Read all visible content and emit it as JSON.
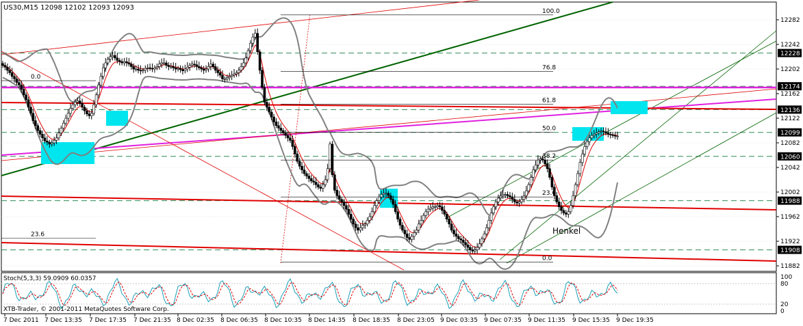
{
  "header": {
    "symbol_info": "US30,M15  12098 12102 12093 12093"
  },
  "stoch": {
    "label": "Stoch(5,3,3) 59.0909 60.0357",
    "levels": [
      "80",
      "20"
    ],
    "range_labels": [
      "100",
      "0"
    ]
  },
  "watermark": "XTB-Trader, © 2001-2011 MetaQuotes Software Corp.",
  "annotation": "Henkel",
  "colors": {
    "background": "#ffffff",
    "grid": "#c8c8c8",
    "bull_candle": "#ffffff",
    "bear_candle": "#000000",
    "bollinger": "#808080",
    "moving_average": "#e00000",
    "horizontal_support": "#e00000",
    "uptrend": "#006400",
    "magenta_line": "#e020e0",
    "highlight_box": "#00e5ee",
    "price_box": "#000000",
    "stoch_main": "#1aa0b8",
    "stoch_signal": "#e00000"
  },
  "chart_data": {
    "type": "candlestick",
    "title": "US30,M15",
    "ohlc_last": {
      "open": 12098,
      "high": 12102,
      "low": 12093,
      "close": 12093
    },
    "y_axis_ticks": [
      12282,
      12242,
      12202,
      12162,
      12122,
      12082,
      12042,
      12002,
      11962,
      11922,
      11882
    ],
    "price_levels": [
      12228,
      12174,
      12136,
      12099,
      12060,
      11988,
      11908
    ],
    "x_axis_labels": [
      "7 Dec 2011",
      "7 Dec 13:35",
      "7 Dec 17:35",
      "7 Dec 21:35",
      "8 Dec 02:35",
      "8 Dec 06:35",
      "8 Dec 10:35",
      "8 Dec 14:35",
      "8 Dec 18:35",
      "8 Dec 23:05",
      "9 Dec 03:35",
      "9 Dec 07:35",
      "9 Dec 11:35",
      "9 Dec 15:35",
      "9 Dec 19:35"
    ],
    "fib_left": [
      {
        "label": "0.0",
        "price": 12183
      },
      {
        "label": "23.6",
        "price": 11927
      }
    ],
    "fib_right": [
      {
        "label": "100.0",
        "price": 12290
      },
      {
        "label": "76.8",
        "price": 12198
      },
      {
        "label": "61.8",
        "price": 12145
      },
      {
        "label": "50.0",
        "price": 12099
      },
      {
        "label": "38.2",
        "price": 12054
      },
      {
        "label": "23.6",
        "price": 11994
      },
      {
        "label": "0.0",
        "price": 11888
      }
    ],
    "candles_close": [
      12208,
      12205,
      12200,
      12196,
      12190,
      12186,
      12180,
      12176,
      12169,
      12160,
      12152,
      12140,
      12130,
      12118,
      12110,
      12102,
      12096,
      12090,
      12085,
      12083,
      12080,
      12082,
      12086,
      12090,
      12098,
      12106,
      12114,
      12122,
      12130,
      12138,
      12144,
      12148,
      12150,
      12146,
      12140,
      12134,
      12129,
      12126,
      12130,
      12144,
      12160,
      12176,
      12190,
      12204,
      12212,
      12218,
      12222,
      12224,
      12220,
      12216,
      12214,
      12212,
      12214,
      12212,
      12210,
      12206,
      12202,
      12202,
      12200,
      12199,
      12200,
      12203,
      12204,
      12203,
      12202,
      12204,
      12206,
      12210,
      12212,
      12212,
      12208,
      12206,
      12206,
      12204,
      12202,
      12203,
      12201,
      12199,
      12202,
      12205,
      12208,
      12210,
      12209,
      12206,
      12204,
      12202,
      12200,
      12202,
      12206,
      12210,
      12206,
      12200,
      12196,
      12192,
      12186,
      12186,
      12188,
      12190,
      12192,
      12194,
      12196,
      12200,
      12206,
      12212,
      12220,
      12232,
      12244,
      12254,
      12260,
      12230,
      12200,
      12172,
      12148,
      12140,
      12132,
      12124,
      12116,
      12110,
      12106,
      12102,
      12098,
      12094,
      12090,
      12086,
      12076,
      12064,
      12052,
      12044,
      12038,
      12032,
      12028,
      12024,
      12020,
      12018,
      12014,
      12010,
      12008,
      12014,
      12022,
      12040,
      12080,
      12030,
      12005,
      11996,
      11990,
      11986,
      11980,
      11974,
      11966,
      11958,
      11950,
      11944,
      11940,
      11944,
      11948,
      11950,
      11956,
      11962,
      11970,
      11980,
      11988,
      11994,
      11998,
      12000,
      12000,
      11996,
      11990,
      11982,
      11970,
      11958,
      11948,
      11940,
      11934,
      11928,
      11925,
      11930,
      11936,
      11940,
      11950,
      11956,
      11964,
      11970,
      11974,
      11976,
      11978,
      11978,
      11980,
      11978,
      11972,
      11966,
      11958,
      11950,
      11940,
      11934,
      11930,
      11926,
      11924,
      11920,
      11916,
      11912,
      11908,
      11906,
      11908,
      11912,
      11918,
      11926,
      11934,
      11944,
      11956,
      11968,
      11978,
      11986,
      11992,
      11996,
      11998,
      11998,
      11996,
      11994,
      11990,
      11986,
      11984,
      11986,
      11990,
      11996,
      12004,
      12014,
      12026,
      12038,
      12046,
      12054,
      12056,
      12054,
      12048,
      12040,
      12026,
      12010,
      11996,
      11986,
      11978,
      11972,
      11968,
      11966,
      11970,
      11980,
      11996,
      12014,
      12032,
      12050,
      12064,
      12076,
      12084,
      12090,
      12094,
      12096,
      12098,
      12100,
      12101,
      12100,
      12098,
      12096,
      12095,
      12094,
      12093,
      12093
    ]
  }
}
